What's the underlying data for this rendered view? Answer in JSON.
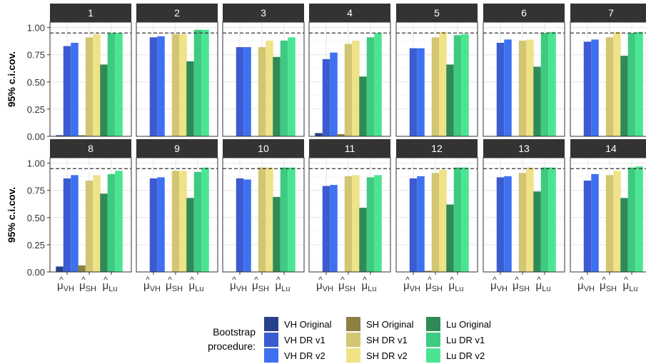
{
  "chart_data": {
    "type": "bar",
    "ylabel": "95% c.i.cov.",
    "ylim": [
      0,
      1.05
    ],
    "yticks": [
      0.0,
      0.25,
      0.5,
      0.75,
      1.0
    ],
    "ytick_labels": [
      "0.00",
      "0.25",
      "0.50",
      "0.75",
      "1.00"
    ],
    "reference_line": 0.95,
    "reference_line_style": "dashed",
    "grid": true,
    "groups": [
      {
        "base": "μ",
        "sub": "VH"
      },
      {
        "base": "μ",
        "sub": "SH"
      },
      {
        "base": "μ",
        "sub": "Lu"
      }
    ],
    "legend": {
      "title_line1": "Bootstrap",
      "title_line2": "procedure:",
      "position": "bottom",
      "series": [
        {
          "name": "VH Original",
          "color": "#27408B"
        },
        {
          "name": "VH DR v1",
          "color": "#3C5BD1"
        },
        {
          "name": "VH DR v2",
          "color": "#3D71F0"
        },
        {
          "name": "SH Original",
          "color": "#8B8143"
        },
        {
          "name": "SH DR v1",
          "color": "#D2C672"
        },
        {
          "name": "SH DR v2",
          "color": "#EFE287"
        },
        {
          "name": "Lu Original",
          "color": "#2E8B57"
        },
        {
          "name": "Lu DR v1",
          "color": "#3CCB80"
        },
        {
          "name": "Lu DR v2",
          "color": "#4BE592"
        }
      ]
    },
    "panels": [
      {
        "label": "1",
        "values": [
          0.01,
          0.83,
          0.86,
          0.01,
          0.91,
          0.94,
          0.66,
          0.95,
          0.95
        ]
      },
      {
        "label": "2",
        "values": [
          0.0,
          0.91,
          0.92,
          0.0,
          0.94,
          0.94,
          0.69,
          0.98,
          0.98
        ]
      },
      {
        "label": "3",
        "values": [
          0.0,
          0.82,
          0.82,
          0.0,
          0.82,
          0.88,
          0.73,
          0.88,
          0.91
        ]
      },
      {
        "label": "4",
        "values": [
          0.03,
          0.71,
          0.77,
          0.02,
          0.85,
          0.88,
          0.55,
          0.91,
          0.95
        ]
      },
      {
        "label": "5",
        "values": [
          0.0,
          0.81,
          0.81,
          0.0,
          0.91,
          0.96,
          0.66,
          0.93,
          0.94
        ]
      },
      {
        "label": "6",
        "values": [
          0.0,
          0.86,
          0.89,
          0.0,
          0.88,
          0.89,
          0.64,
          0.95,
          0.96
        ]
      },
      {
        "label": "7",
        "values": [
          0.0,
          0.87,
          0.89,
          0.0,
          0.91,
          0.96,
          0.74,
          0.95,
          0.96
        ]
      },
      {
        "label": "8",
        "values": [
          0.05,
          0.86,
          0.89,
          0.06,
          0.84,
          0.89,
          0.72,
          0.9,
          0.93
        ]
      },
      {
        "label": "9",
        "values": [
          0.0,
          0.86,
          0.87,
          0.0,
          0.93,
          0.93,
          0.68,
          0.92,
          0.96
        ]
      },
      {
        "label": "10",
        "values": [
          0.0,
          0.86,
          0.85,
          0.0,
          0.96,
          0.96,
          0.69,
          0.96,
          0.96
        ]
      },
      {
        "label": "11",
        "values": [
          0.0,
          0.79,
          0.8,
          0.0,
          0.88,
          0.89,
          0.59,
          0.87,
          0.89
        ]
      },
      {
        "label": "12",
        "values": [
          0.0,
          0.86,
          0.88,
          0.01,
          0.91,
          0.94,
          0.62,
          0.96,
          0.96
        ]
      },
      {
        "label": "13",
        "values": [
          0.0,
          0.87,
          0.88,
          0.0,
          0.91,
          0.96,
          0.74,
          0.96,
          0.96
        ]
      },
      {
        "label": "14",
        "values": [
          0.0,
          0.84,
          0.9,
          0.0,
          0.89,
          0.93,
          0.68,
          0.96,
          0.97
        ]
      }
    ]
  }
}
